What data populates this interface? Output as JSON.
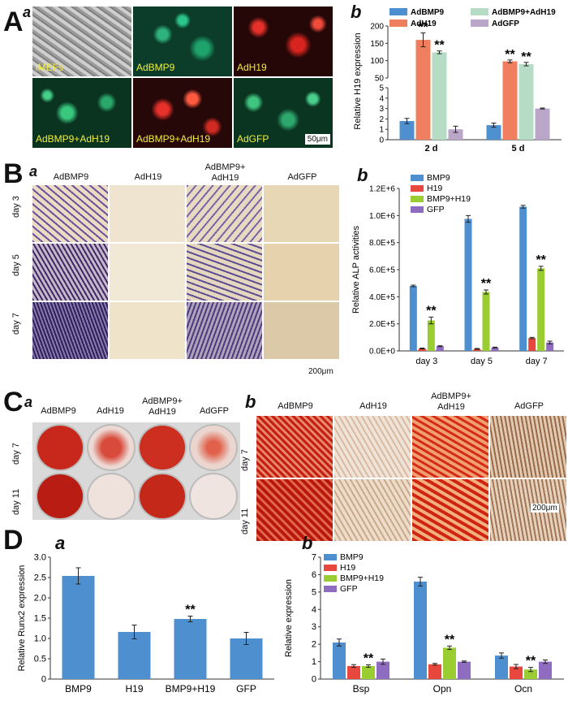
{
  "panels": {
    "A": {
      "letter": "A",
      "sub": "a",
      "tiles": [
        "iMEFs",
        "AdBMP9",
        "AdH19",
        "AdBMP9+AdH19",
        "AdBMP9+AdH19",
        "AdGFP"
      ],
      "scale": "50μm"
    },
    "Ab": {
      "letter": "b"
    },
    "B": {
      "letter": "B",
      "sub": "a",
      "cols": [
        "AdBMP9",
        "AdH19",
        "AdBMP9+\nAdH19",
        "AdGFP"
      ],
      "rows": [
        "day 3",
        "day 5",
        "day 7"
      ],
      "scale": "200μm"
    },
    "Bb": {
      "letter": "b"
    },
    "C": {
      "letter": "C",
      "sub": "a",
      "cols": [
        "AdBMP9",
        "AdH19",
        "AdBMP9+\nAdH19",
        "AdGFP"
      ],
      "rows": [
        "day 7",
        "day 11"
      ]
    },
    "Cb": {
      "letter": "b",
      "cols": [
        "AdBMP9",
        "AdH19",
        "AdBMP9+\nAdH19",
        "AdGFP"
      ],
      "rows": [
        "day 7",
        "day 11"
      ],
      "scale": "200μm"
    },
    "D": {
      "letter": "D",
      "sub": "a"
    },
    "Db": {
      "letter": "b"
    }
  },
  "chart_data": [
    {
      "id": "Ab",
      "type": "bar",
      "ylabel": "Relative  H19  expression",
      "categories": [
        "2 d",
        "5 d"
      ],
      "series": [
        {
          "name": "AdBMP9",
          "color": "#4e8fd0",
          "values": [
            1.8,
            1.4
          ],
          "err": [
            0.25,
            0.2
          ]
        },
        {
          "name": "AdH19",
          "color": "#f07f5f",
          "values": [
            160,
            98
          ],
          "err": [
            20,
            4
          ]
        },
        {
          "name": "AdBMP9+AdH19",
          "color": "#b6dcc5",
          "values": [
            124,
            90
          ],
          "err": [
            4,
            5
          ]
        },
        {
          "name": "AdGFP",
          "color": "#b9a6c9",
          "values": [
            1.0,
            3.0
          ],
          "err": [
            0.3,
            0.05
          ]
        }
      ],
      "sig": [
        [
          "",
          "**",
          "**",
          ""
        ],
        [
          "",
          "**",
          "**",
          ""
        ]
      ],
      "ylim_low": [
        0,
        5
      ],
      "ticks_low": [
        0,
        1,
        2,
        3,
        4,
        5
      ],
      "ylim_high": [
        50,
        200
      ],
      "ticks_high": [
        50,
        100,
        150,
        200
      ]
    },
    {
      "id": "Bb",
      "type": "bar",
      "ylabel": "Relative  ALP activities",
      "categories": [
        "day 3",
        "day 5",
        "day 7"
      ],
      "series": [
        {
          "name": "BMP9",
          "color": "#4e8fd0",
          "values": [
            480000,
            975000,
            1065000
          ],
          "err": [
            6000,
            25000,
            10000
          ]
        },
        {
          "name": "H19",
          "color": "#e8473d",
          "values": [
            18000,
            15000,
            95000
          ],
          "err": [
            3000,
            3000,
            5000
          ]
        },
        {
          "name": "BMP9+H19",
          "color": "#9acd32",
          "values": [
            225000,
            435000,
            610000
          ],
          "err": [
            25000,
            15000,
            15000
          ]
        },
        {
          "name": "GFP",
          "color": "#8e6cc0",
          "values": [
            35000,
            25000,
            62000
          ],
          "err": [
            3000,
            3000,
            10000
          ]
        }
      ],
      "sig": [
        [
          "",
          "",
          "**",
          ""
        ],
        [
          "",
          "",
          "**",
          ""
        ],
        [
          "",
          "",
          "**",
          ""
        ]
      ],
      "ylim": [
        0,
        1200000
      ],
      "ticks": [
        0,
        200000,
        400000,
        600000,
        800000,
        1000000,
        1200000
      ],
      "ticklabels": [
        "0.0E+0",
        "2.0E+5",
        "4.0E+5",
        "6.0E+5",
        "8.0E+5",
        "1.0E+6",
        "1.2E+6"
      ]
    },
    {
      "id": "Da",
      "type": "bar",
      "ylabel": "Relative Runx2 expression",
      "categories": [
        "BMP9",
        "H19",
        "BMP9+H19",
        "GFP"
      ],
      "series": [
        {
          "name": "",
          "color": "#4e8fd0",
          "values": [
            2.54,
            1.16,
            1.48,
            1.0
          ],
          "err": [
            0.2,
            0.17,
            0.07,
            0.15
          ]
        }
      ],
      "sig": [
        [
          ""
        ],
        [
          ""
        ],
        [
          "**"
        ],
        [
          ""
        ]
      ],
      "ylim": [
        0,
        3
      ],
      "ticks": [
        0,
        0.5,
        1,
        1.5,
        2,
        2.5,
        3
      ],
      "ticklabels": [
        "0",
        "0.5",
        "1.0",
        "1.5",
        "2.0",
        "2.5",
        "3.0"
      ]
    },
    {
      "id": "Db",
      "type": "bar",
      "ylabel": "Relative expression",
      "categories": [
        "Bsp",
        "Opn",
        "Ocn"
      ],
      "series": [
        {
          "name": "BMP9",
          "color": "#4e8fd0",
          "values": [
            2.1,
            5.6,
            1.35
          ],
          "err": [
            0.2,
            0.25,
            0.15
          ]
        },
        {
          "name": "H19",
          "color": "#e8473d",
          "values": [
            0.75,
            0.85,
            0.72
          ],
          "err": [
            0.08,
            0.05,
            0.12
          ]
        },
        {
          "name": "BMP9+H19",
          "color": "#9acd32",
          "values": [
            0.75,
            1.8,
            0.55
          ],
          "err": [
            0.07,
            0.1,
            0.12
          ]
        },
        {
          "name": "GFP",
          "color": "#8e6cc0",
          "values": [
            1.0,
            1.0,
            1.0
          ],
          "err": [
            0.15,
            0.04,
            0.1
          ]
        }
      ],
      "sig": [
        [
          "",
          "",
          "**",
          ""
        ],
        [
          "",
          "",
          "**",
          ""
        ],
        [
          "",
          "",
          "**",
          ""
        ]
      ],
      "ylim": [
        0,
        7
      ],
      "ticks": [
        0,
        1,
        2,
        3,
        4,
        5,
        6,
        7
      ],
      "ticklabels": [
        "0",
        "1",
        "2",
        "3",
        "4",
        "5",
        "6",
        "7"
      ]
    }
  ]
}
